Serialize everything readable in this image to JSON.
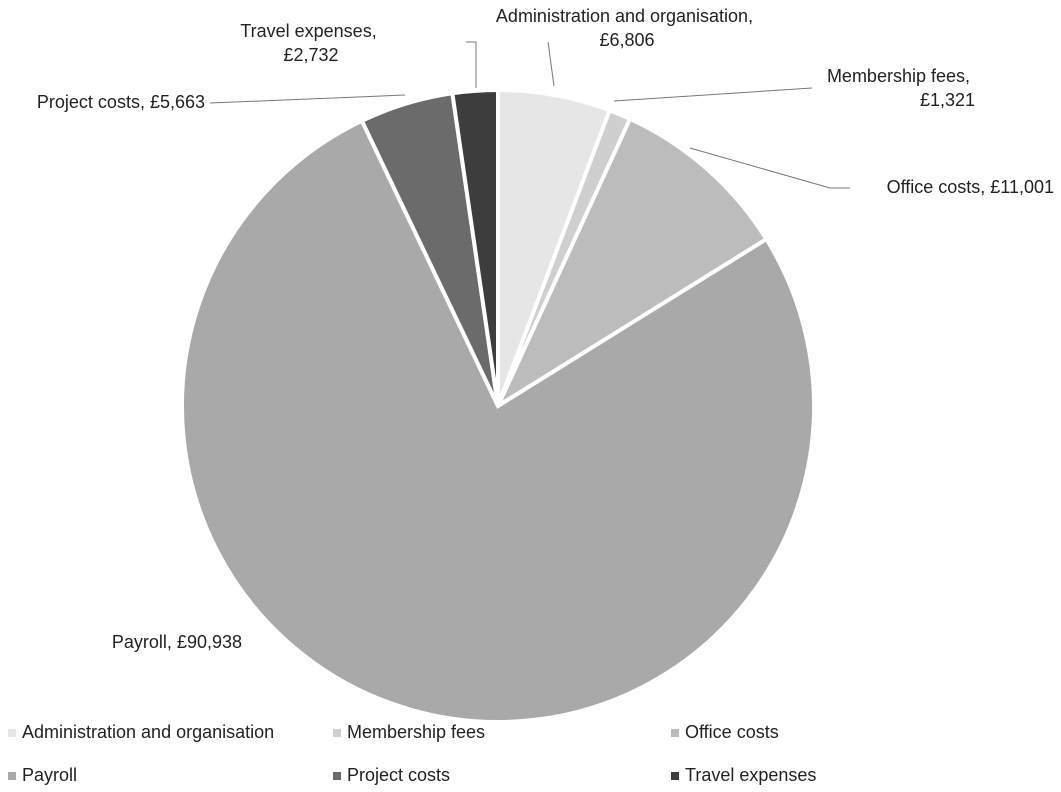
{
  "chart_data": {
    "type": "pie",
    "categories": [
      "Administration and organisation",
      "Membership fees",
      "Office costs",
      "Payroll",
      "Project costs",
      "Travel expenses"
    ],
    "values": [
      6806,
      1321,
      11001,
      90938,
      5663,
      2732
    ],
    "value_labels": [
      "Administration and organisation, £6,806",
      "Membership fees, £1,321",
      "Office costs, £11,001",
      "Payroll, £90,938",
      "Project costs, £5,663",
      "Travel expenses, £2,732"
    ],
    "colors": [
      "#e6e6e6",
      "#cfcfcf",
      "#bcbcbc",
      "#a9a9a9",
      "#6b6b6b",
      "#3d3d3d"
    ],
    "legend": "bottom"
  }
}
